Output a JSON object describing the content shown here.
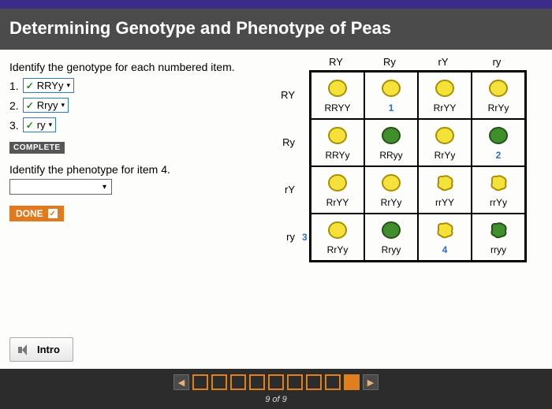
{
  "header": {
    "title": "Determining Genotype and Phenotype of Peas"
  },
  "instruction": "Identify the genotype for each numbered item.",
  "items": [
    {
      "num": "1.",
      "value": "RRYy"
    },
    {
      "num": "2.",
      "value": "Rryy"
    },
    {
      "num": "3.",
      "value": "ry"
    }
  ],
  "complete_label": "COMPLETE",
  "sub_instruction": "Identify the phenotype for item 4.",
  "done_label": "DONE",
  "intro_label": "Intro",
  "punnett": {
    "col_headers": [
      "RY",
      "Ry",
      "rY",
      "ry"
    ],
    "row_headers": [
      "RY",
      "Ry",
      "rY",
      "ry"
    ],
    "cells": [
      [
        {
          "label": "RRYY",
          "shape": "round",
          "fill": "#f4e23a",
          "stroke": "#a98f00"
        },
        {
          "label": "1",
          "shape": "round",
          "fill": "#f4e23a",
          "stroke": "#a98f00",
          "blue": true
        },
        {
          "label": "RrYY",
          "shape": "round",
          "fill": "#f4e23a",
          "stroke": "#a98f00"
        },
        {
          "label": "RrYy",
          "shape": "round",
          "fill": "#f4e23a",
          "stroke": "#a98f00"
        }
      ],
      [
        {
          "label": "RRYy",
          "shape": "round",
          "fill": "#f4e23a",
          "stroke": "#a98f00"
        },
        {
          "label": "RRyy",
          "shape": "round",
          "fill": "#3f8f2d",
          "stroke": "#245218"
        },
        {
          "label": "RrYy",
          "shape": "round",
          "fill": "#f4e23a",
          "stroke": "#a98f00"
        },
        {
          "label": "2",
          "shape": "round",
          "fill": "#3f8f2d",
          "stroke": "#245218",
          "blue": true
        }
      ],
      [
        {
          "label": "RrYY",
          "shape": "round",
          "fill": "#f4e23a",
          "stroke": "#a98f00"
        },
        {
          "label": "RrYy",
          "shape": "round",
          "fill": "#f4e23a",
          "stroke": "#a98f00"
        },
        {
          "label": "rrYY",
          "shape": "wrinkled",
          "fill": "#f4e23a",
          "stroke": "#a98f00"
        },
        {
          "label": "rrYy",
          "shape": "wrinkled",
          "fill": "#f4e23a",
          "stroke": "#a98f00"
        }
      ],
      [
        {
          "label": "RrYy",
          "shape": "round",
          "fill": "#f4e23a",
          "stroke": "#a98f00",
          "sidenum": "3"
        },
        {
          "label": "Rryy",
          "shape": "round",
          "fill": "#3f8f2d",
          "stroke": "#245218"
        },
        {
          "label": "4",
          "shape": "wrinkled",
          "fill": "#f4e23a",
          "stroke": "#a98f00",
          "blue": true
        },
        {
          "label": "rryy",
          "shape": "wrinkled",
          "fill": "#3f8f2d",
          "stroke": "#245218"
        }
      ]
    ]
  },
  "progress": {
    "total": 9,
    "current": 9,
    "text": "9 of 9"
  }
}
